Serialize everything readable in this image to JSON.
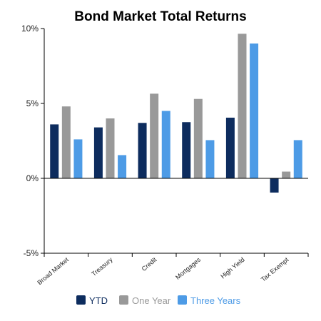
{
  "chart_data": {
    "type": "bar",
    "title": "Bond Market Total Returns",
    "xlabel": "",
    "ylabel": "",
    "categories": [
      "Broad Market",
      "Treasury",
      "Credit",
      "Mortgages",
      "High Yield",
      "Tax Exempt"
    ],
    "series": [
      {
        "name": "YTD",
        "color": "#0d2c5e",
        "values": [
          3.6,
          3.4,
          3.7,
          3.75,
          4.05,
          -0.95
        ]
      },
      {
        "name": "One Year",
        "color": "#999999",
        "values": [
          4.8,
          4.0,
          5.65,
          5.3,
          9.65,
          0.45
        ]
      },
      {
        "name": "Three Years",
        "color": "#4d9be6",
        "values": [
          2.6,
          1.55,
          4.5,
          2.55,
          9.0,
          2.55
        ]
      }
    ],
    "ylim": [
      -5,
      10
    ],
    "yticks": [
      -5,
      0,
      5,
      10
    ],
    "ytick_labels": [
      "-5%",
      "0%",
      "5%",
      "10%"
    ],
    "grid": false,
    "legend": "bottom-center"
  }
}
